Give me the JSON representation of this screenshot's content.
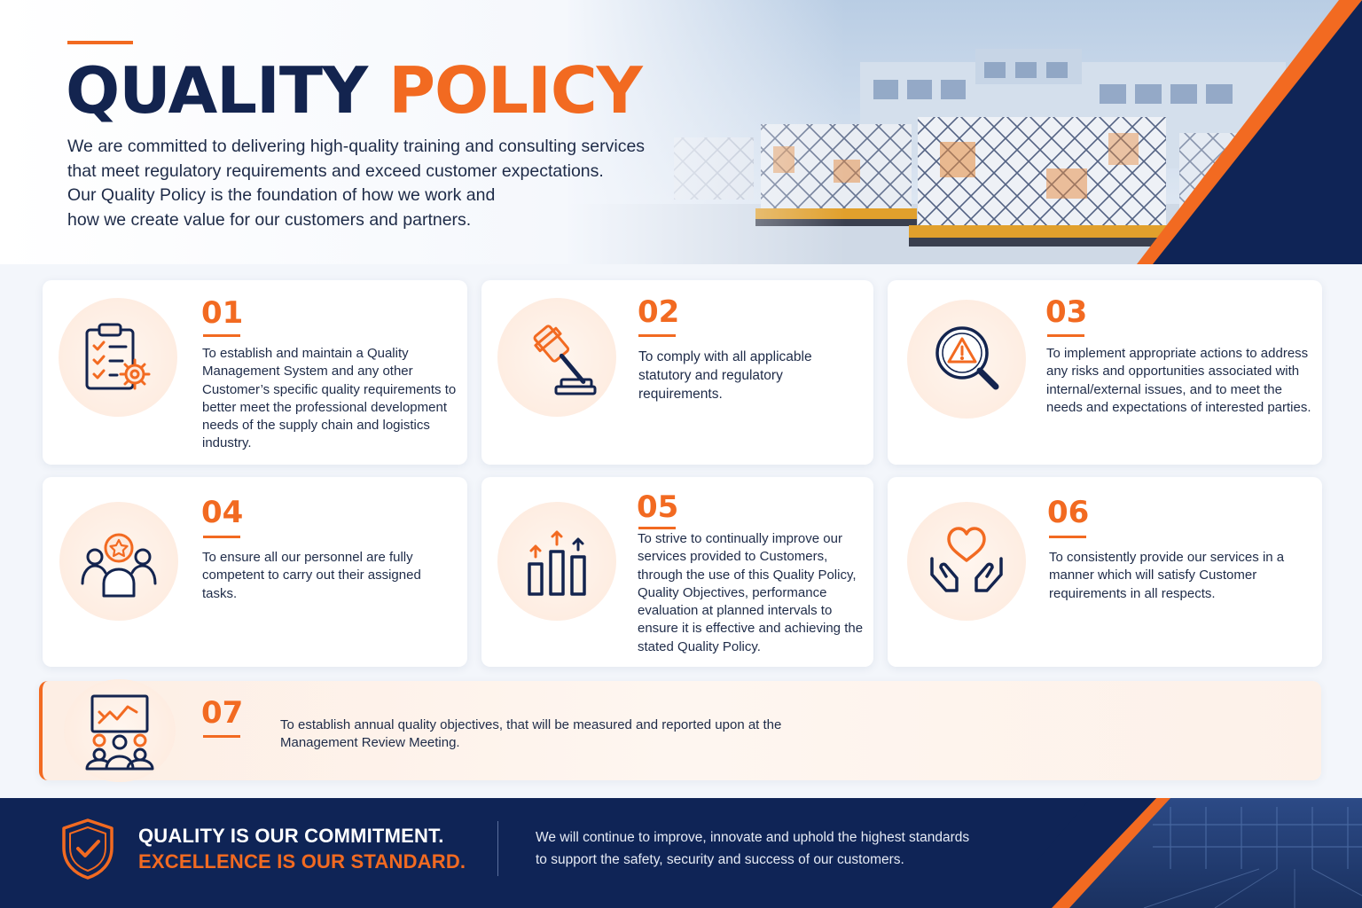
{
  "header": {
    "title_part1": "QUALITY",
    "title_part2": "POLICY",
    "intro_lines": [
      "We are committed to delivering high-quality training and consulting services",
      "that meet regulatory requirements and exceed customer expectations.",
      "Our Quality Policy is the foundation of how we work and",
      "how we create value for our customers and partners."
    ]
  },
  "policies": [
    {
      "number": "01",
      "icon": "checklist-gear-icon",
      "text": "To establish and maintain a Quality Management System and any other Customer’s specific quality requirements to better meet the professional development needs of the supply chain and logistics industry."
    },
    {
      "number": "02",
      "icon": "gavel-icon",
      "text": "To comply with all applicable statutory and regulatory requirements."
    },
    {
      "number": "03",
      "icon": "magnifier-warning-icon",
      "text": "To implement appropriate actions to address any risks and opportunities associated with internal/external issues, and to meet the needs and expectations of interested parties."
    },
    {
      "number": "04",
      "icon": "team-star-icon",
      "text": "To ensure all our personnel are fully competent to carry out their assigned tasks."
    },
    {
      "number": "05",
      "icon": "growth-bars-icon",
      "text": "To strive to continually improve our services provided to Customers, through the use of this Quality Policy, Quality Objectives, performance evaluation at planned intervals to ensure it is effective and achieving the stated Quality Policy."
    },
    {
      "number": "06",
      "icon": "hands-heart-icon",
      "text": "To consistently provide our services in a manner which will satisfy Customer requirements in all respects."
    },
    {
      "number": "07",
      "icon": "presentation-meeting-icon",
      "text": "To establish annual quality objectives, that will be measured and reported upon at the Management Review Meeting."
    }
  ],
  "footer": {
    "icon": "shield-check-icon",
    "slogan_line1": "QUALITY IS OUR COMMITMENT.",
    "slogan_line2": "EXCELLENCE IS OUR STANDARD.",
    "description_lines": [
      "We will continue to improve, innovate and uphold the highest standards",
      "to support the safety, security and success of our customers."
    ]
  },
  "colors": {
    "navy": "#13244f",
    "orange": "#f26a21",
    "footer_bg": "#0f2456",
    "icon_circle_bg": "#fde9dc"
  }
}
